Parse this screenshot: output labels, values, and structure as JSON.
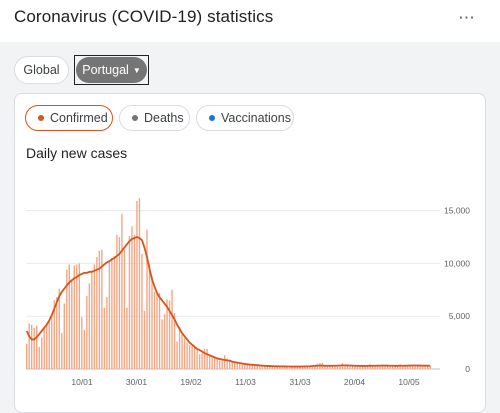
{
  "header": {
    "title": "Coronavirus (COVID-19) statistics",
    "more_label": "⋯"
  },
  "region_selector": {
    "global_label": "Global",
    "selected_label": "Portugal",
    "caret": "▼"
  },
  "metric_tabs": [
    {
      "label": "Confirmed",
      "dot_color": "#d9531e",
      "selected": true
    },
    {
      "label": "Deaths",
      "dot_color": "#757575",
      "selected": false
    },
    {
      "label": "Vaccinations",
      "dot_color": "#1a73e8",
      "selected": false
    }
  ],
  "chart_data": {
    "type": "bar",
    "title": "Daily new cases",
    "x_tick_labels": [
      "10/01",
      "30/01",
      "19/02",
      "11/03",
      "31/03",
      "20/04",
      "10/05"
    ],
    "y_tick_labels": [
      "0",
      "5,000",
      "10,000",
      "15,000"
    ],
    "ylim": [
      0,
      16000
    ],
    "grid": true,
    "bar_color": "#f4a582",
    "line_color": "#d9531e",
    "series": [
      {
        "type": "bar",
        "values": [
          2400,
          4300,
          4200,
          3900,
          4100,
          2100,
          3000,
          3800,
          4300,
          4600,
          5100,
          6500,
          6800,
          7600,
          3400,
          6200,
          9400,
          9900,
          8500,
          9800,
          9900,
          10000,
          4900,
          3700,
          6900,
          8100,
          9300,
          9900,
          10600,
          11200,
          11300,
          5800,
          6800,
          10100,
          10500,
          10700,
          12700,
          12500,
          14700,
          11300,
          5800,
          12600,
          13500,
          12700,
          15900,
          16200,
          10900,
          5500,
          13200,
          9900,
          8800,
          7300,
          7100,
          7200,
          4700,
          5200,
          6600,
          6500,
          7500,
          5300,
          2600,
          4000,
          3300,
          2900,
          2500,
          2300,
          2200,
          2100,
          1800,
          1400,
          1500,
          1900,
          1900,
          1300,
          1200,
          1100,
          900,
          800,
          900,
          1300,
          1000,
          900,
          700,
          600,
          600,
          500,
          550,
          500,
          400,
          500,
          500,
          400,
          350,
          350,
          350,
          300,
          320,
          280,
          250,
          250,
          300,
          280,
          250,
          250,
          220,
          240,
          230,
          220,
          220,
          260,
          250,
          240,
          240,
          230,
          220,
          300,
          500,
          550,
          600,
          280,
          240,
          260,
          380,
          330,
          300,
          280,
          560,
          350,
          300,
          270,
          250,
          240,
          350,
          320,
          290,
          300,
          280,
          450,
          320,
          360,
          380,
          300,
          400,
          420,
          430,
          300,
          280,
          350,
          320,
          450,
          320,
          290,
          280,
          350,
          300,
          280,
          380,
          400,
          350,
          340,
          320,
          300
        ]
      },
      {
        "type": "line",
        "values": [
          3600,
          3100,
          2800,
          2800,
          3000,
          3300,
          3600,
          3900,
          4200,
          4600,
          5100,
          5700,
          6300,
          6900,
          7300,
          7600,
          7900,
          8200,
          8400,
          8600,
          8700,
          8900,
          9000,
          9100,
          9100,
          9200,
          9200,
          9300,
          9400,
          9500,
          9700,
          9900,
          10100,
          10200,
          10400,
          10500,
          10700,
          10900,
          11200,
          11500,
          11800,
          12100,
          12300,
          12400,
          12500,
          12400,
          12200,
          11500,
          10600,
          9500,
          8500,
          7800,
          7200,
          6800,
          6500,
          6200,
          5900,
          5500,
          5100,
          4700,
          4200,
          3800,
          3400,
          3100,
          2800,
          2500,
          2300,
          2100,
          1900,
          1800,
          1650,
          1500,
          1400,
          1300,
          1200,
          1100,
          1000,
          950,
          900,
          850,
          820,
          780,
          700,
          650,
          600,
          560,
          520,
          480,
          450,
          420,
          400,
          380,
          360,
          340,
          320,
          300,
          290,
          280,
          270,
          260,
          255,
          250,
          245,
          240,
          238,
          235,
          232,
          230,
          230,
          232,
          235,
          240,
          250,
          260,
          280,
          300,
          320,
          330,
          320,
          310,
          305,
          300,
          305,
          310,
          320,
          330,
          340,
          340,
          335,
          330,
          320,
          310,
          300,
          295,
          290,
          290,
          295,
          300,
          305,
          310,
          315,
          320,
          325,
          320,
          315,
          310,
          305,
          300,
          300,
          305,
          310,
          315,
          320,
          325,
          330,
          330,
          328,
          325,
          320,
          315,
          312,
          310
        ]
      }
    ]
  }
}
